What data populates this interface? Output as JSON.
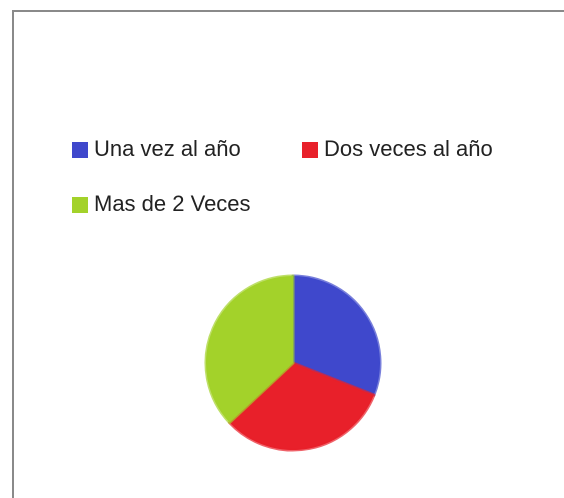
{
  "chart_data": {
    "type": "pie",
    "categories": [
      "Una vez al año",
      "Dos veces al año",
      "Mas de 2 Veces"
    ],
    "values": [
      31,
      32,
      37
    ],
    "colors": [
      "#3f48cc",
      "#e8202a",
      "#a3d22a"
    ],
    "legend": "top"
  }
}
